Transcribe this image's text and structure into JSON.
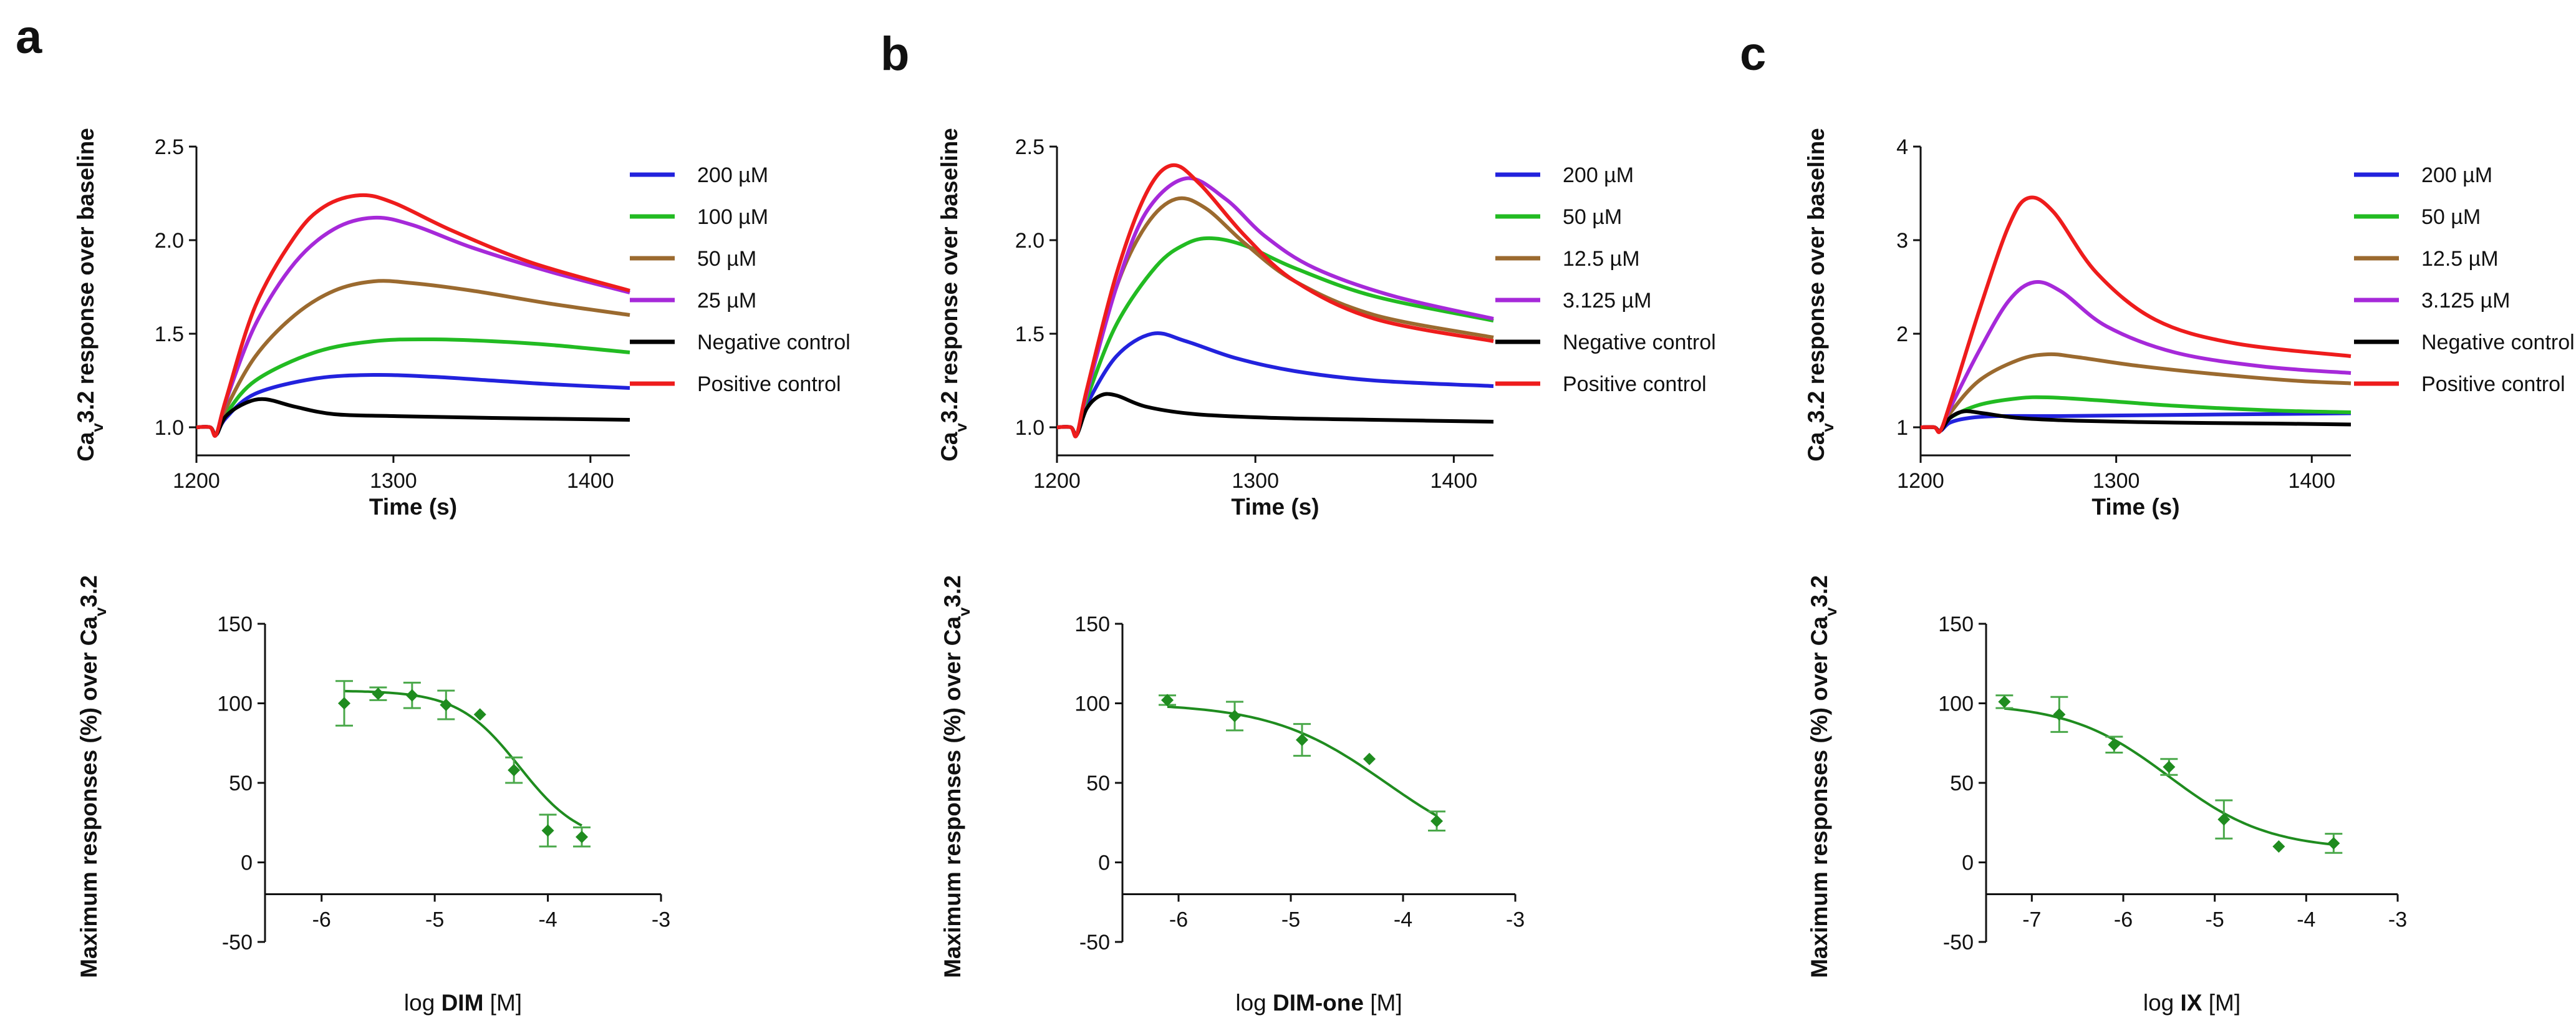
{
  "panel_labels": [
    "a",
    "b",
    "c"
  ],
  "colors": {
    "series": [
      "#2222dd",
      "#22bb22",
      "#9b6a2f",
      "#a629d9",
      "#000000",
      "#ee1c1c"
    ],
    "fit": "#1f8c1f",
    "axis": "#111111"
  },
  "chart_data": [
    {
      "id": "a-top",
      "type": "line",
      "title": "",
      "xlabel": "Time (s)",
      "ylabel": "Cav3.2 response over baseline",
      "xlim": [
        1200,
        1420
      ],
      "ylim": [
        0.85,
        2.5
      ],
      "xticks": [
        1200,
        1300,
        1400
      ],
      "xtick_labels": [
        "1200",
        "1300",
        "1400"
      ],
      "yticks": [
        1.0,
        1.5,
        2.0,
        2.5
      ],
      "ytick_labels": [
        "1.0",
        "1.5",
        "2.0",
        "2.5"
      ],
      "series": [
        {
          "name": "200 µM",
          "x": [
            1200,
            1207,
            1210,
            1215,
            1230,
            1260,
            1290,
            1320,
            1350,
            1380,
            1420
          ],
          "values": [
            1.0,
            1.0,
            0.96,
            1.05,
            1.18,
            1.26,
            1.28,
            1.27,
            1.25,
            1.23,
            1.21
          ]
        },
        {
          "name": "100 µM",
          "x": [
            1200,
            1207,
            1210,
            1215,
            1230,
            1260,
            1290,
            1320,
            1350,
            1380,
            1420
          ],
          "values": [
            1.0,
            1.0,
            0.96,
            1.07,
            1.25,
            1.4,
            1.46,
            1.47,
            1.46,
            1.44,
            1.4
          ]
        },
        {
          "name": "50 µM",
          "x": [
            1200,
            1207,
            1210,
            1215,
            1230,
            1250,
            1270,
            1290,
            1310,
            1340,
            1380,
            1420
          ],
          "values": [
            1.0,
            1.0,
            0.96,
            1.1,
            1.38,
            1.6,
            1.73,
            1.78,
            1.77,
            1.73,
            1.66,
            1.6
          ]
        },
        {
          "name": "25 µM",
          "x": [
            1200,
            1207,
            1210,
            1215,
            1230,
            1250,
            1270,
            1290,
            1310,
            1340,
            1380,
            1420
          ],
          "values": [
            1.0,
            1.0,
            0.96,
            1.14,
            1.55,
            1.88,
            2.06,
            2.12,
            2.08,
            1.96,
            1.83,
            1.72
          ]
        },
        {
          "name": "Negative control",
          "x": [
            1200,
            1207,
            1210,
            1215,
            1225,
            1235,
            1250,
            1270,
            1300,
            1350,
            1420
          ],
          "values": [
            1.0,
            1.0,
            0.96,
            1.06,
            1.13,
            1.15,
            1.11,
            1.07,
            1.06,
            1.05,
            1.04
          ]
        },
        {
          "name": "Positive control",
          "x": [
            1200,
            1207,
            1210,
            1215,
            1230,
            1250,
            1265,
            1283,
            1300,
            1330,
            1370,
            1420
          ],
          "values": [
            1.0,
            1.0,
            0.96,
            1.15,
            1.65,
            2.02,
            2.18,
            2.24,
            2.2,
            2.05,
            1.88,
            1.73
          ]
        }
      ]
    },
    {
      "id": "b-top",
      "type": "line",
      "title": "",
      "xlabel": "Time (s)",
      "ylabel": "Cav3.2 response over baseline",
      "xlim": [
        1200,
        1420
      ],
      "ylim": [
        0.85,
        2.5
      ],
      "xticks": [
        1200,
        1300,
        1400
      ],
      "xtick_labels": [
        "1200",
        "1300",
        "1400"
      ],
      "yticks": [
        1.0,
        1.5,
        2.0,
        2.5
      ],
      "ytick_labels": [
        "1.0",
        "1.5",
        "2.0",
        "2.5"
      ],
      "series": [
        {
          "name": "200 µM",
          "x": [
            1200,
            1207,
            1210,
            1215,
            1230,
            1248,
            1265,
            1290,
            1320,
            1360,
            1420
          ],
          "values": [
            1.0,
            1.0,
            0.96,
            1.12,
            1.38,
            1.5,
            1.46,
            1.37,
            1.3,
            1.25,
            1.22
          ]
        },
        {
          "name": "50 µM",
          "x": [
            1200,
            1207,
            1210,
            1215,
            1230,
            1250,
            1265,
            1278,
            1295,
            1320,
            1360,
            1420
          ],
          "values": [
            1.0,
            1.0,
            0.96,
            1.15,
            1.55,
            1.86,
            1.98,
            2.01,
            1.97,
            1.85,
            1.7,
            1.57
          ]
        },
        {
          "name": "12.5 µM",
          "x": [
            1200,
            1207,
            1210,
            1215,
            1230,
            1245,
            1260,
            1275,
            1295,
            1320,
            1360,
            1420
          ],
          "values": [
            1.0,
            1.0,
            0.96,
            1.18,
            1.75,
            2.08,
            2.22,
            2.17,
            1.98,
            1.78,
            1.6,
            1.48
          ]
        },
        {
          "name": "3.125 µM",
          "x": [
            1200,
            1207,
            1210,
            1215,
            1230,
            1245,
            1265,
            1285,
            1305,
            1330,
            1370,
            1420
          ],
          "values": [
            1.0,
            1.0,
            0.96,
            1.18,
            1.75,
            2.15,
            2.33,
            2.22,
            2.02,
            1.85,
            1.7,
            1.58
          ]
        },
        {
          "name": "Negative control",
          "x": [
            1200,
            1207,
            1210,
            1215,
            1222,
            1230,
            1245,
            1270,
            1310,
            1360,
            1420
          ],
          "values": [
            1.0,
            1.0,
            0.96,
            1.1,
            1.17,
            1.17,
            1.11,
            1.07,
            1.05,
            1.04,
            1.03
          ]
        },
        {
          "name": "Positive control",
          "x": [
            1200,
            1207,
            1210,
            1215,
            1230,
            1245,
            1258,
            1272,
            1295,
            1320,
            1360,
            1420
          ],
          "values": [
            1.0,
            1.0,
            0.96,
            1.2,
            1.82,
            2.25,
            2.4,
            2.3,
            2.02,
            1.78,
            1.58,
            1.46
          ]
        }
      ]
    },
    {
      "id": "c-top",
      "type": "line",
      "title": "",
      "xlabel": "Time (s)",
      "ylabel": "Cav3.2 response over baseline",
      "xlim": [
        1200,
        1420
      ],
      "ylim": [
        0.7,
        4.0
      ],
      "xticks": [
        1200,
        1300,
        1400
      ],
      "xtick_labels": [
        "1200",
        "1300",
        "1400"
      ],
      "yticks": [
        1,
        2,
        3,
        4
      ],
      "ytick_labels": [
        "1",
        "2",
        "3",
        "4"
      ],
      "series": [
        {
          "name": "200 µM",
          "x": [
            1200,
            1207,
            1210,
            1215,
            1225,
            1240,
            1270,
            1320,
            1370,
            1420
          ],
          "values": [
            1.0,
            1.0,
            0.96,
            1.05,
            1.1,
            1.12,
            1.12,
            1.13,
            1.14,
            1.15
          ]
        },
        {
          "name": "50 µM",
          "x": [
            1200,
            1207,
            1210,
            1215,
            1230,
            1250,
            1265,
            1290,
            1330,
            1380,
            1420
          ],
          "values": [
            1.0,
            1.0,
            0.96,
            1.1,
            1.24,
            1.31,
            1.32,
            1.29,
            1.23,
            1.18,
            1.16
          ]
        },
        {
          "name": "12.5 µM",
          "x": [
            1200,
            1207,
            1210,
            1215,
            1230,
            1250,
            1265,
            1280,
            1310,
            1350,
            1390,
            1420
          ],
          "values": [
            1.0,
            1.0,
            0.96,
            1.15,
            1.5,
            1.72,
            1.78,
            1.75,
            1.66,
            1.57,
            1.5,
            1.47
          ]
        },
        {
          "name": "3.125 µM",
          "x": [
            1200,
            1207,
            1210,
            1215,
            1230,
            1245,
            1258,
            1272,
            1295,
            1330,
            1375,
            1420
          ],
          "values": [
            1.0,
            1.0,
            0.96,
            1.2,
            1.82,
            2.35,
            2.55,
            2.45,
            2.08,
            1.8,
            1.65,
            1.58
          ]
        },
        {
          "name": "Negative control",
          "x": [
            1200,
            1207,
            1210,
            1215,
            1222,
            1232,
            1250,
            1280,
            1330,
            1380,
            1420
          ],
          "values": [
            1.0,
            1.0,
            0.96,
            1.1,
            1.17,
            1.15,
            1.1,
            1.07,
            1.05,
            1.04,
            1.03
          ]
        },
        {
          "name": "Positive control",
          "x": [
            1200,
            1207,
            1210,
            1215,
            1230,
            1245,
            1255,
            1268,
            1290,
            1320,
            1360,
            1420
          ],
          "values": [
            1.0,
            1.0,
            0.96,
            1.25,
            2.25,
            3.15,
            3.45,
            3.3,
            2.65,
            2.15,
            1.9,
            1.76
          ]
        }
      ]
    },
    {
      "id": "a-bottom",
      "type": "scatter",
      "title": "",
      "xlabel_prefix": "log ",
      "xlabel_bold": "DIM",
      "xlabel_suffix": " [M]",
      "ylabel": "Maximum responses (%) over Cav3.2",
      "xlim": [
        -6.5,
        -3
      ],
      "ylim": [
        -50,
        150
      ],
      "axis_y_at": -20,
      "xticks": [
        -6,
        -5,
        -4,
        -3
      ],
      "xtick_labels": [
        "-6",
        "-5",
        "-4",
        "-3"
      ],
      "yticks": [
        -50,
        0,
        50,
        100,
        150
      ],
      "ytick_labels": [
        "-50",
        "0",
        "50",
        "100",
        "150"
      ],
      "points": [
        {
          "x": -5.8,
          "y": 100,
          "err": 14
        },
        {
          "x": -5.5,
          "y": 106,
          "err": 4
        },
        {
          "x": -5.2,
          "y": 105,
          "err": 8
        },
        {
          "x": -4.9,
          "y": 99,
          "err": 9
        },
        {
          "x": -4.6,
          "y": 93,
          "err": 0
        },
        {
          "x": -4.3,
          "y": 58,
          "err": 8
        },
        {
          "x": -4.0,
          "y": 20,
          "err": 10
        },
        {
          "x": -3.7,
          "y": 16,
          "err": 6
        }
      ],
      "fit": {
        "top": 108,
        "bottom": 12,
        "logIC50": -4.25,
        "hill": 1.6,
        "x_range": [
          -5.8,
          -3.7
        ]
      }
    },
    {
      "id": "b-bottom",
      "type": "scatter",
      "title": "",
      "xlabel_prefix": "log ",
      "xlabel_bold": "DIM-one",
      "xlabel_suffix": " [M]",
      "ylabel": "Maximum responses (%) over Cav3.2",
      "xlim": [
        -6.5,
        -3
      ],
      "ylim": [
        -50,
        150
      ],
      "axis_y_at": -20,
      "xticks": [
        -6,
        -5,
        -4,
        -3
      ],
      "xtick_labels": [
        "-6",
        "-5",
        "-4",
        "-3"
      ],
      "yticks": [
        -50,
        0,
        50,
        100,
        150
      ],
      "ytick_labels": [
        "-50",
        "0",
        "50",
        "100",
        "150"
      ],
      "points": [
        {
          "x": -6.1,
          "y": 102,
          "err": 3
        },
        {
          "x": -5.5,
          "y": 92,
          "err": 9
        },
        {
          "x": -4.9,
          "y": 77,
          "err": 10
        },
        {
          "x": -4.3,
          "y": 65,
          "err": 0
        },
        {
          "x": -3.7,
          "y": 26,
          "err": 6
        }
      ],
      "fit": {
        "top": 100,
        "bottom": 0,
        "logIC50": -4.15,
        "hill": 0.85,
        "x_range": [
          -6.1,
          -3.7
        ]
      }
    },
    {
      "id": "c-bottom",
      "type": "scatter",
      "title": "",
      "xlabel_prefix": "log ",
      "xlabel_bold": "IX",
      "xlabel_suffix": " [M]",
      "ylabel": "Maximum responses (%) over Cav3.2",
      "xlim": [
        -7.5,
        -3
      ],
      "ylim": [
        -50,
        150
      ],
      "axis_y_at": -20,
      "xticks": [
        -7,
        -6,
        -5,
        -4,
        -3
      ],
      "xtick_labels": [
        "-7",
        "-6",
        "-5",
        "-4",
        "-3"
      ],
      "yticks": [
        -50,
        0,
        50,
        100,
        150
      ],
      "ytick_labels": [
        "-50",
        "0",
        "50",
        "100",
        "150"
      ],
      "points": [
        {
          "x": -7.3,
          "y": 101,
          "err": 4
        },
        {
          "x": -6.7,
          "y": 93,
          "err": 11
        },
        {
          "x": -6.1,
          "y": 74,
          "err": 5
        },
        {
          "x": -5.5,
          "y": 60,
          "err": 5
        },
        {
          "x": -4.9,
          "y": 27,
          "err": 12
        },
        {
          "x": -4.3,
          "y": 10,
          "err": 0
        },
        {
          "x": -3.7,
          "y": 12,
          "err": 6
        }
      ],
      "fit": {
        "top": 100,
        "bottom": 8,
        "logIC50": -5.5,
        "hill": 0.8,
        "x_range": [
          -7.3,
          -3.7
        ]
      }
    }
  ]
}
